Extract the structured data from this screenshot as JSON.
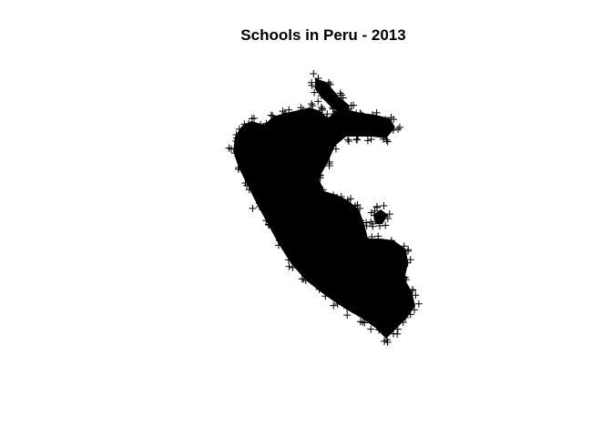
{
  "title": "Schools in Peru - 2013",
  "marker": {
    "glyph": "+",
    "color": "#000000"
  },
  "background_color": "#ffffff"
}
